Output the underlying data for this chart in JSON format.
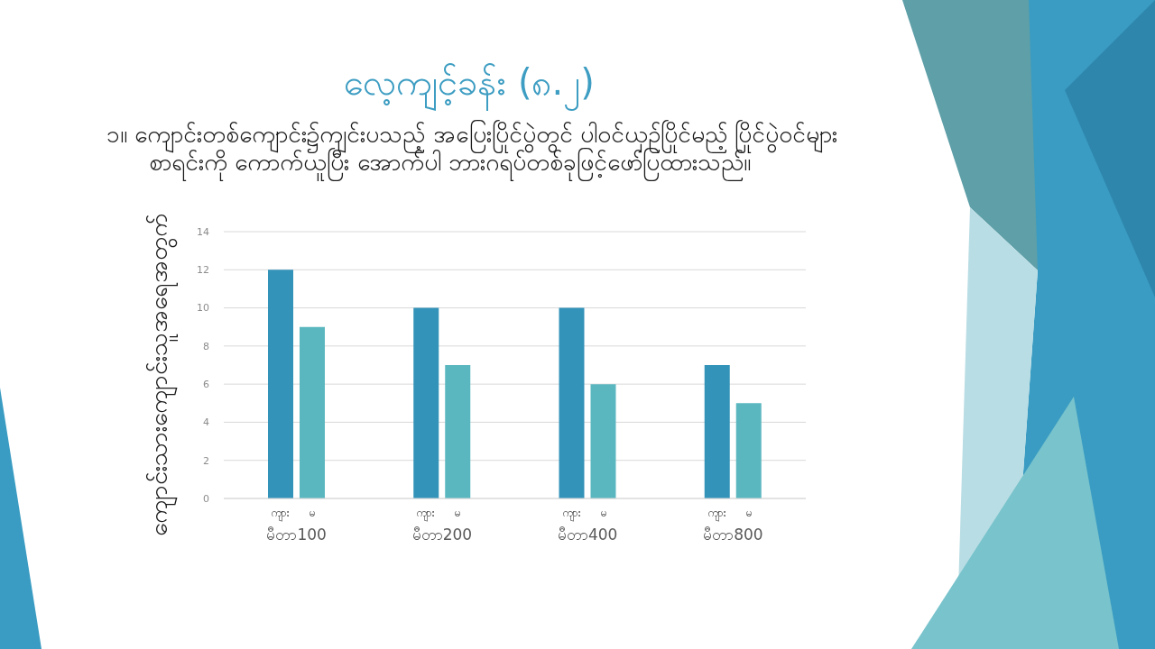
{
  "chart_data": {
    "type": "bar",
    "title": "လေ့ကျင့်ခန်း (၈.၂)",
    "subtitle": "၁။ ကျောင်းတစ်ကျောင်း၌ကျင်းပသည့် အပြေးပြိုင်ပွဲတွင် ပါဝင်ယှဉ်ပြိုင်မည့် ပြိုင်ပွဲဝင်များ စာရင်းကို ကောက်ယူပြီး အောက်ပါ ဘားဂရပ်တစ်ခုဖြင့်ဖော်ပြထားသည်။",
    "ylabel": "ကျောင်းသားကျောင်းသူအရေအတွက်",
    "categories": [
      "မီတာ100",
      "မီတာ200",
      "မီတာ400",
      "မီတာ800"
    ],
    "series": [
      {
        "name": "ကျား",
        "color": "#3393b9",
        "values": [
          12,
          10,
          10,
          7
        ]
      },
      {
        "name": "မ",
        "color": "#5bb7bf",
        "values": [
          9,
          7,
          6,
          5
        ]
      }
    ],
    "ylim": [
      0,
      14
    ],
    "yticks": [
      0,
      2,
      4,
      6,
      8,
      10,
      12,
      14
    ],
    "grid": "y"
  }
}
